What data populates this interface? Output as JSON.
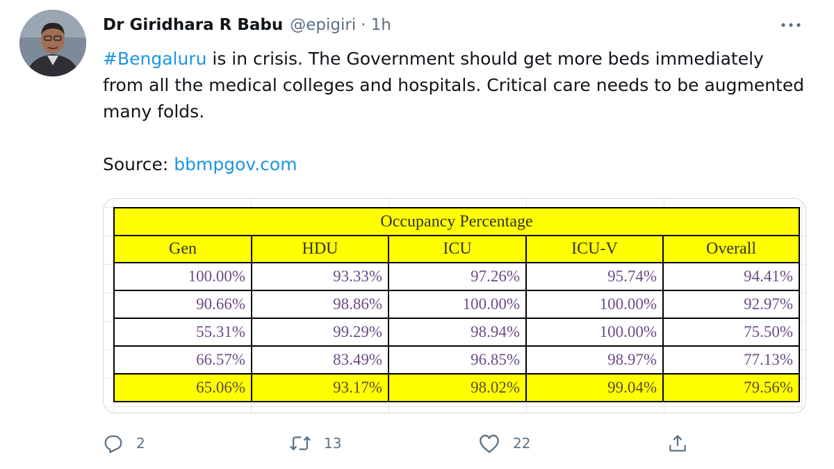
{
  "tweet": {
    "author": {
      "display_name": "Dr Giridhara R Babu",
      "handle": "@epigiri",
      "separator": "·",
      "time": "1h"
    },
    "text": {
      "hashtag": "#Bengaluru",
      "body": " is in crisis. The Government should get more beds immediately from all the medical colleges and hospitals. Critical care needs to be augmented many folds.",
      "source_prefix": "Source: ",
      "source_link": "bbmpgov.com"
    },
    "actions": {
      "reply_count": "2",
      "retweet_count": "13",
      "like_count": "22"
    }
  },
  "table": {
    "title": "Occupancy Percentage",
    "columns": [
      "Gen",
      "HDU",
      "ICU",
      "ICU-V",
      "Overall"
    ],
    "rows": [
      [
        "100.00%",
        "93.33%",
        "97.26%",
        "95.74%",
        "94.41%"
      ],
      [
        "90.66%",
        "98.86%",
        "100.00%",
        "100.00%",
        "92.97%"
      ],
      [
        "55.31%",
        "99.29%",
        "98.94%",
        "100.00%",
        "75.50%"
      ],
      [
        "66.57%",
        "83.49%",
        "96.85%",
        "98.97%",
        "77.13%"
      ],
      [
        "65.06%",
        "93.17%",
        "98.02%",
        "99.04%",
        "79.56%"
      ]
    ]
  },
  "colors": {
    "link": "#1b95e0",
    "secondary_text": "#5b7083",
    "table_highlight": "#ffff00",
    "table_value_text": "#6d4b86"
  },
  "icons": {
    "more": "more-dots-icon",
    "reply": "reply-icon",
    "retweet": "retweet-icon",
    "like": "heart-icon",
    "share": "share-icon"
  }
}
